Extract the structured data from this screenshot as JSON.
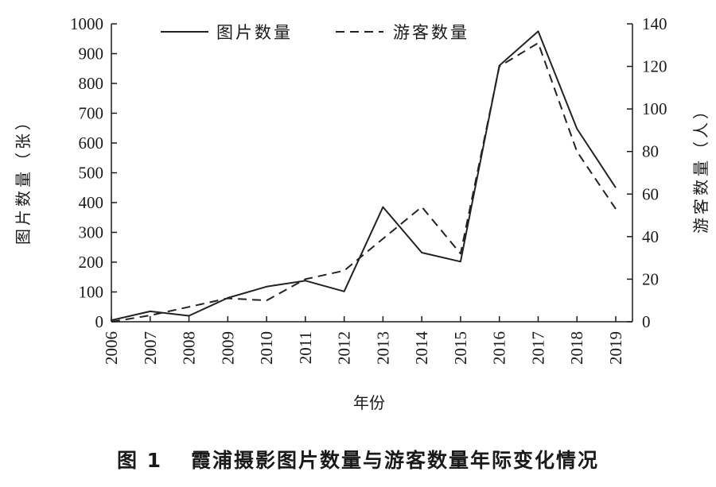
{
  "caption": {
    "figure_number": "图 1",
    "text": "霞浦摄影图片数量与游客数量年际变化情况"
  },
  "chart_data": {
    "type": "line",
    "title": "",
    "xlabel": "年份",
    "ylabel": "图片数量（张）",
    "y2label": "游客数量（人）",
    "x": [
      "2006",
      "2007",
      "2008",
      "2009",
      "2010",
      "2011",
      "2012",
      "2013",
      "2014",
      "2015",
      "2016",
      "2017",
      "2018",
      "2019"
    ],
    "ylim": [
      0,
      1000
    ],
    "yticks": [
      0,
      100,
      200,
      300,
      400,
      500,
      600,
      700,
      800,
      900,
      1000
    ],
    "y2lim": [
      0,
      140
    ],
    "y2ticks": [
      0,
      20,
      40,
      60,
      80,
      100,
      120,
      140
    ],
    "grid": false,
    "legend_position": "top",
    "series": [
      {
        "name": "图片数量",
        "axis": "left",
        "style": "solid",
        "color": "#222222",
        "values": [
          5,
          35,
          20,
          80,
          118,
          138,
          102,
          385,
          232,
          202,
          860,
          975,
          648,
          450
        ]
      },
      {
        "name": "游客数量",
        "axis": "right",
        "style": "dashed",
        "color": "#222222",
        "values": [
          0,
          3,
          7,
          11,
          10,
          20,
          24,
          39,
          54,
          32,
          120,
          131,
          80,
          53
        ]
      }
    ]
  }
}
